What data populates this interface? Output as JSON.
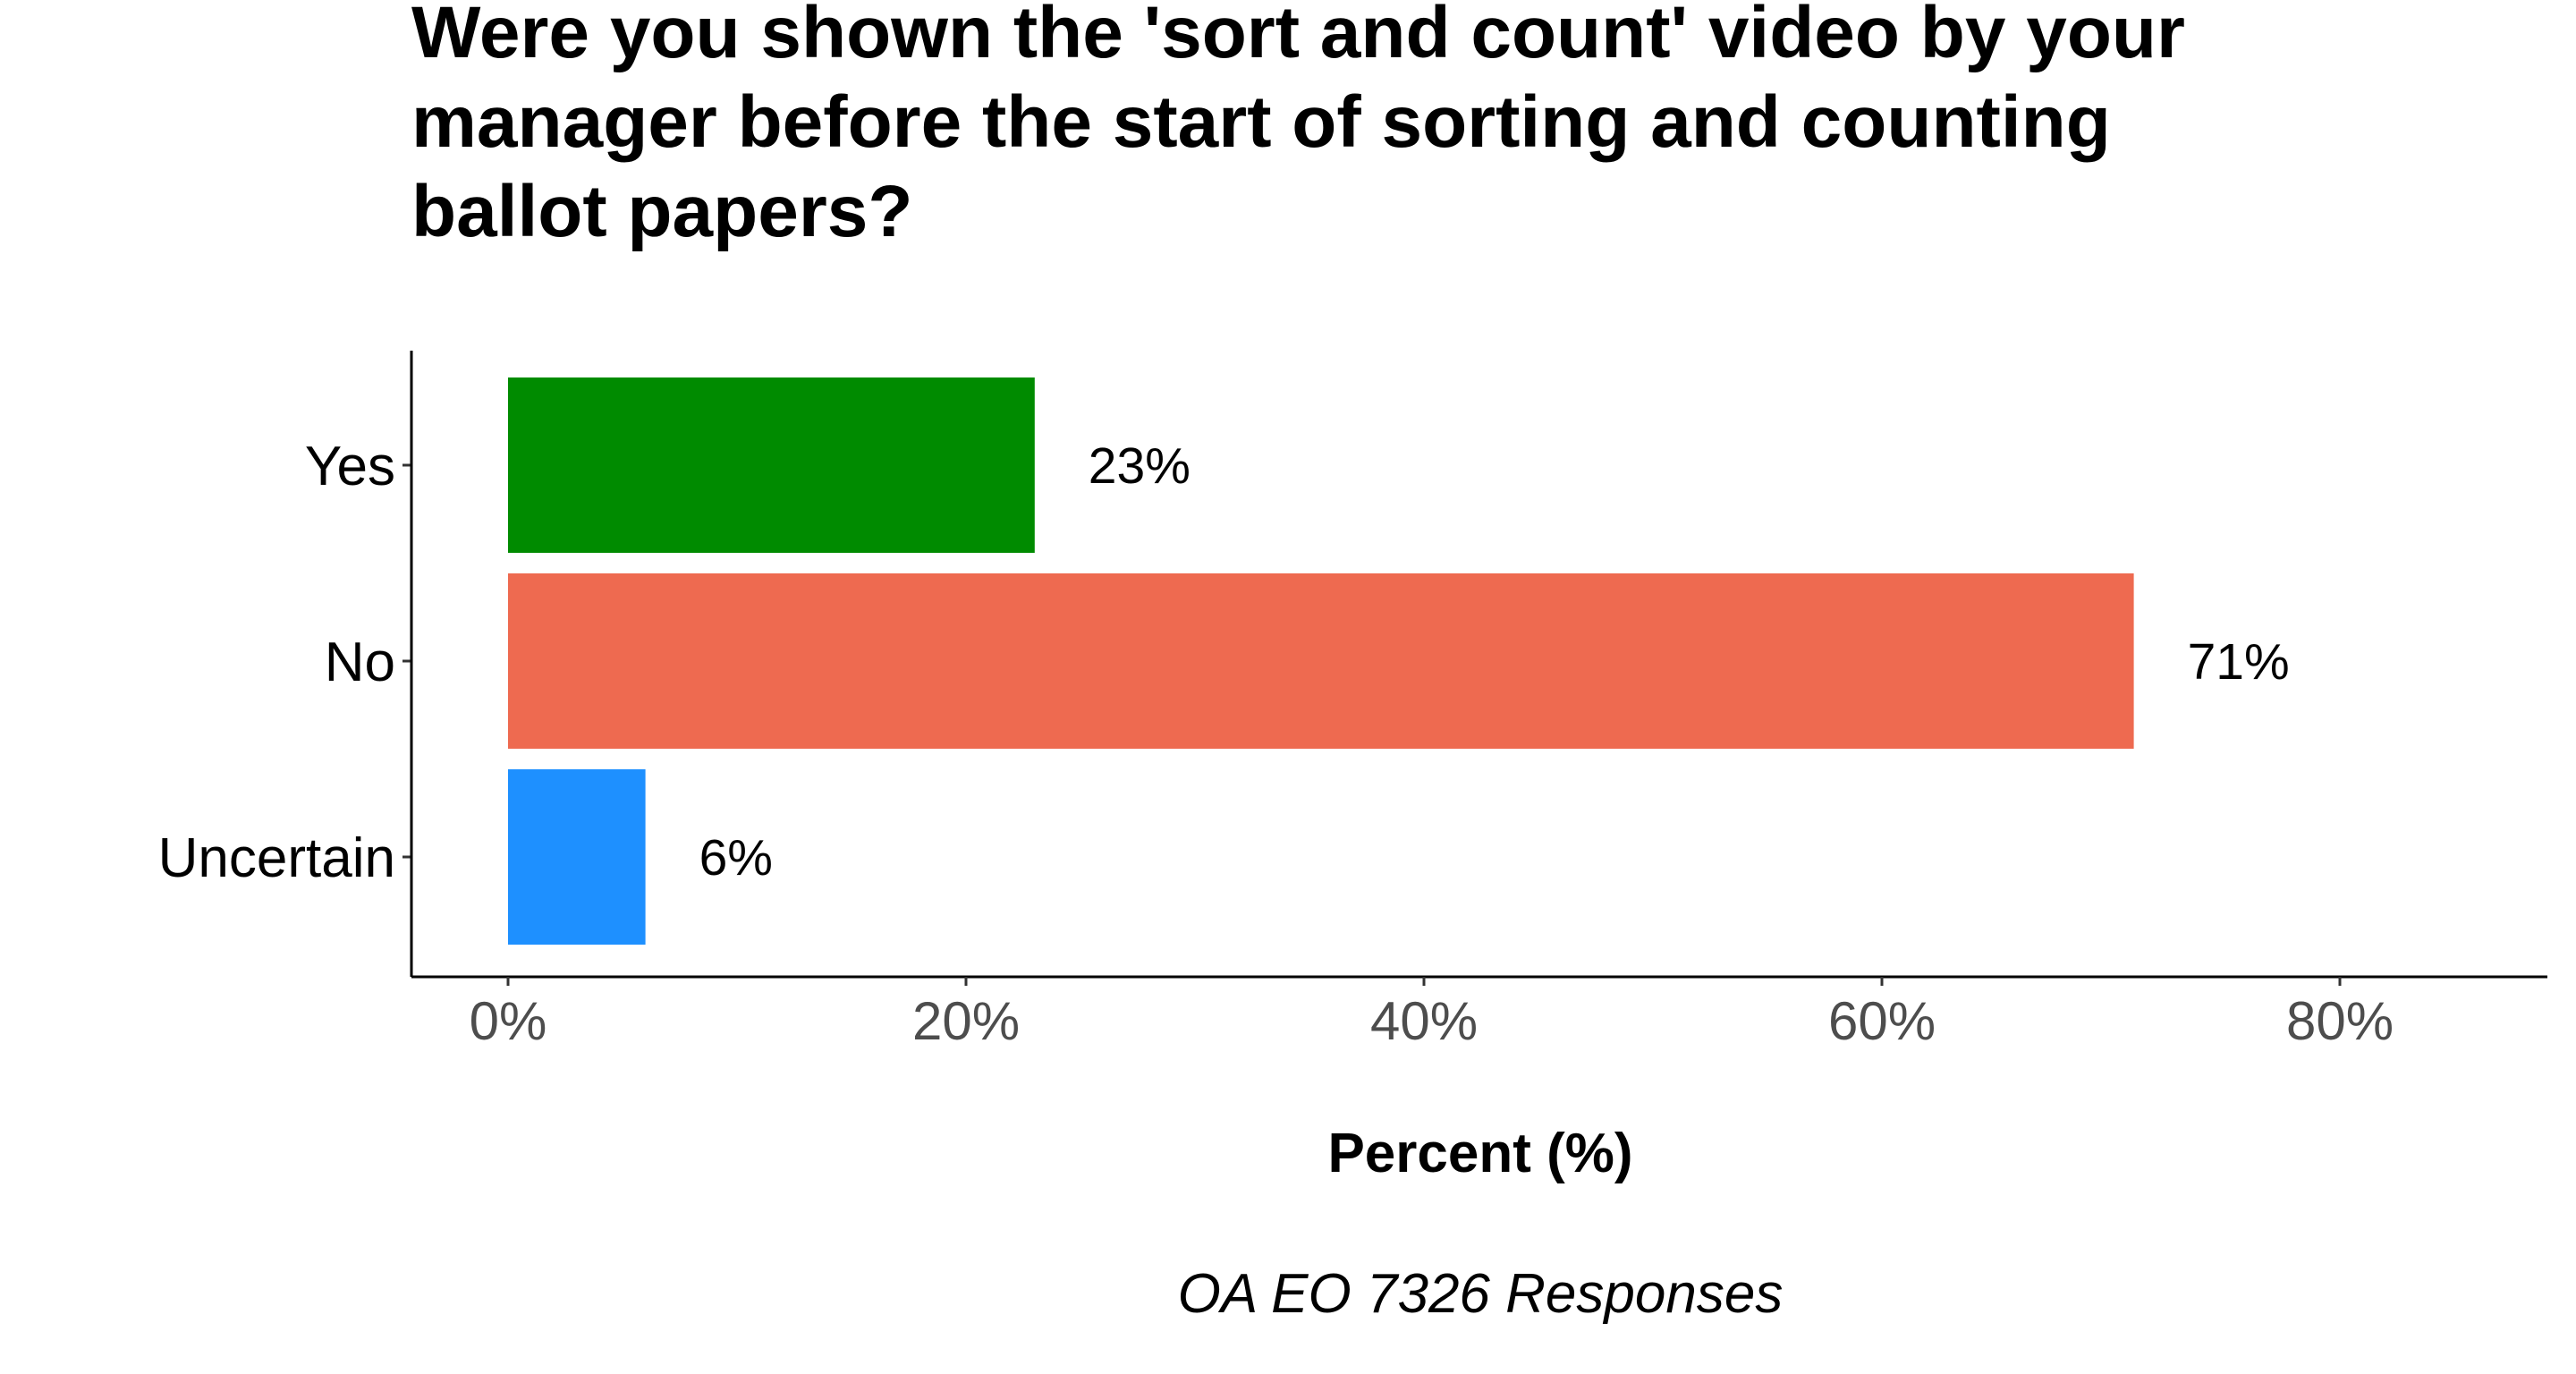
{
  "chart_data": {
    "type": "bar",
    "orientation": "horizontal",
    "title": "Were you shown the 'sort and count' video by your manager before the start of sorting and counting ballot papers?",
    "title_lines": [
      "Were you shown the 'sort and count' video by your",
      "manager before the start of sorting and counting",
      "ballot papers?"
    ],
    "categories": [
      "Yes",
      "No",
      "Uncertain"
    ],
    "values": [
      23,
      71,
      6
    ],
    "value_labels": [
      "23%",
      "71%",
      "6%"
    ],
    "colors": [
      "#008B00",
      "#EE6A50",
      "#1E90FF"
    ],
    "xlabel": "Percent (%)",
    "ylabel": "",
    "xlim": [
      0,
      85
    ],
    "x_ticks": [
      0,
      20,
      40,
      60,
      80
    ],
    "x_tick_labels": [
      "0%",
      "20%",
      "40%",
      "60%",
      "80%"
    ],
    "caption": "OA EO 7326 Responses",
    "grid": false,
    "legend": "none"
  }
}
